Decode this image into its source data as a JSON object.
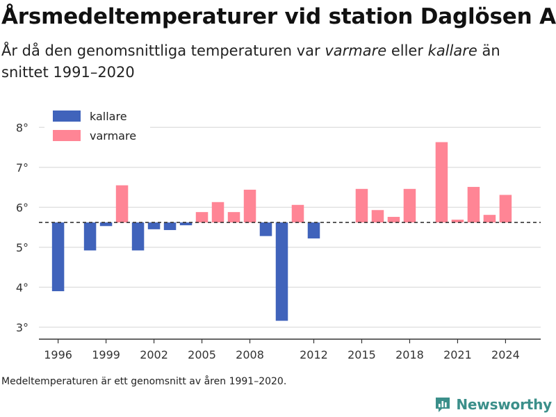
{
  "title": "Årsmedeltemperaturer vid station Daglösen A",
  "subtitle": {
    "part1": "År då den genomsnittliga temperaturen var ",
    "warmer": "varmare",
    "part2": " eller ",
    "colder": "kallare",
    "part3": " än snittet 1991–2020"
  },
  "footnote": "Medeltemperaturen är ett genomsnitt av åren 1991–2020.",
  "brand": {
    "name": "Newsworthy"
  },
  "colors": {
    "colder": "#4063bb",
    "warmer": "#ff8595",
    "grid": "#dddddd",
    "reference_line": "#333333",
    "brand": "#3b8f8a"
  },
  "chart_data": {
    "type": "bar",
    "baseline": 5.62,
    "ylim": [
      2.7,
      8.3
    ],
    "yticks": [
      3,
      4,
      5,
      6,
      7,
      8
    ],
    "ytick_labels": [
      "3°",
      "4°",
      "5°",
      "6°",
      "7°",
      "8°"
    ],
    "xlim": [
      1994.8,
      2026.2
    ],
    "xticks": [
      1996,
      1999,
      2002,
      2005,
      2008,
      2012,
      2015,
      2018,
      2021,
      2024
    ],
    "xtick_labels": [
      "1996",
      "1999",
      "2002",
      "2005",
      "2008",
      "2012",
      "2015",
      "2018",
      "2021",
      "2024"
    ],
    "legend": {
      "position": "top-left",
      "entries": [
        {
          "label": "kallare",
          "key": "colder"
        },
        {
          "label": "varmare",
          "key": "warmer"
        }
      ]
    },
    "grid": true,
    "data": [
      {
        "year": 1996,
        "value": 3.9
      },
      {
        "year": 1998,
        "value": 4.92
      },
      {
        "year": 1999,
        "value": 5.53
      },
      {
        "year": 2000,
        "value": 6.55
      },
      {
        "year": 2001,
        "value": 4.92
      },
      {
        "year": 2002,
        "value": 5.45
      },
      {
        "year": 2003,
        "value": 5.43
      },
      {
        "year": 2004,
        "value": 5.55
      },
      {
        "year": 2005,
        "value": 5.88
      },
      {
        "year": 2006,
        "value": 6.13
      },
      {
        "year": 2007,
        "value": 5.88
      },
      {
        "year": 2008,
        "value": 6.44
      },
      {
        "year": 2009,
        "value": 5.28
      },
      {
        "year": 2010,
        "value": 3.16
      },
      {
        "year": 2011,
        "value": 6.06
      },
      {
        "year": 2012,
        "value": 5.22
      },
      {
        "year": 2015,
        "value": 6.46
      },
      {
        "year": 2016,
        "value": 5.93
      },
      {
        "year": 2017,
        "value": 5.76
      },
      {
        "year": 2018,
        "value": 6.46
      },
      {
        "year": 2020,
        "value": 7.63
      },
      {
        "year": 2021,
        "value": 5.69
      },
      {
        "year": 2022,
        "value": 6.51
      },
      {
        "year": 2023,
        "value": 5.81
      },
      {
        "year": 2024,
        "value": 6.31
      }
    ]
  }
}
